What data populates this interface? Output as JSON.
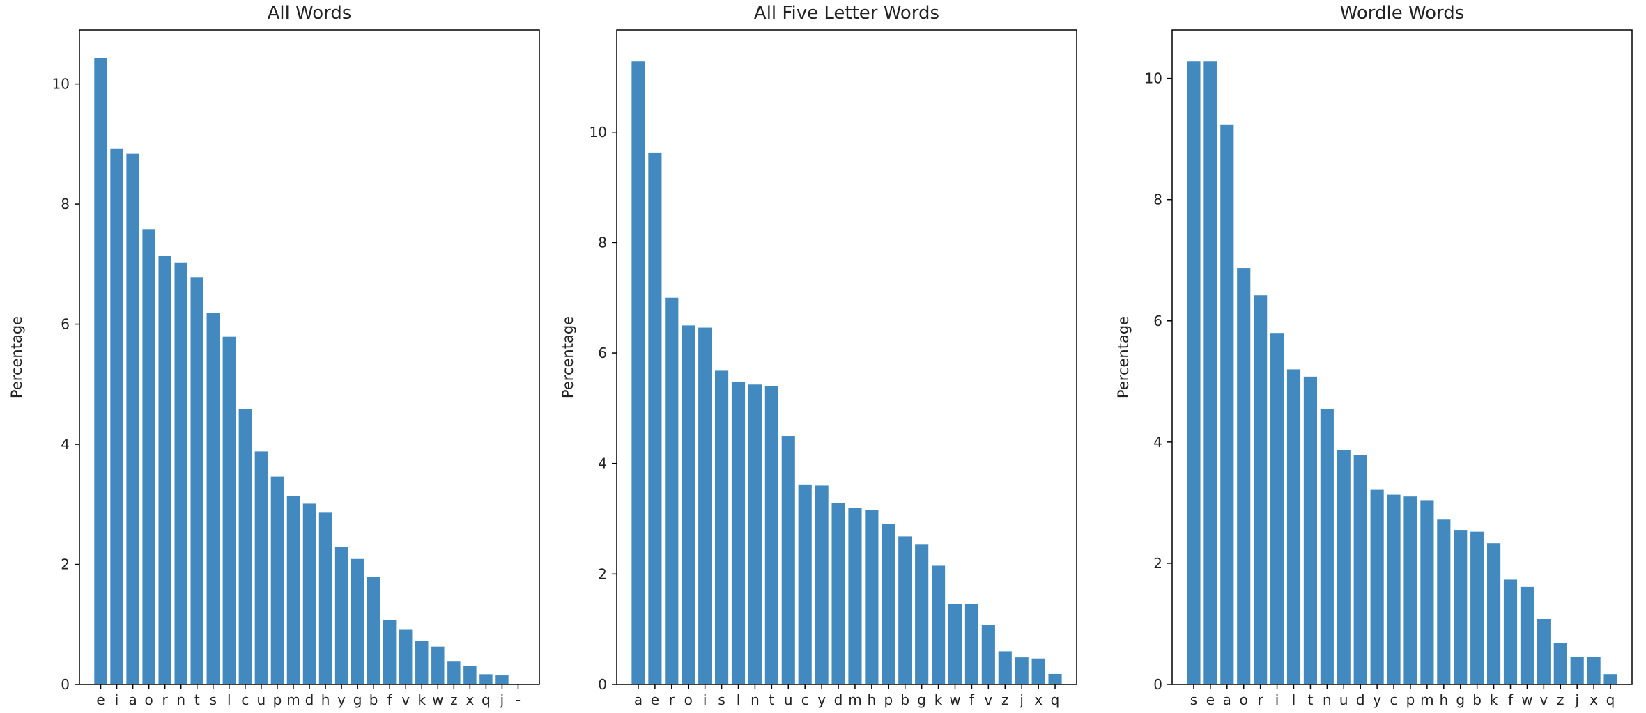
{
  "colors": {
    "bar": "#4189bf",
    "axis": "#000000",
    "text": "#222222",
    "background": "#ffffff"
  },
  "chart_data": [
    {
      "type": "bar",
      "title": "All Words",
      "xlabel": "",
      "ylabel": "Percentage",
      "ylim": [
        0,
        10.9
      ],
      "yticks": [
        0,
        2,
        4,
        6,
        8,
        10
      ],
      "categories": [
        "e",
        "i",
        "a",
        "o",
        "r",
        "n",
        "t",
        "s",
        "l",
        "c",
        "u",
        "p",
        "m",
        "d",
        "h",
        "y",
        "g",
        "b",
        "f",
        "v",
        "k",
        "w",
        "z",
        "x",
        "q",
        "j",
        "-"
      ],
      "values": [
        10.43,
        8.92,
        8.84,
        7.58,
        7.14,
        7.03,
        6.78,
        6.19,
        5.79,
        4.59,
        3.88,
        3.46,
        3.14,
        3.01,
        2.86,
        2.29,
        2.09,
        1.79,
        1.07,
        0.91,
        0.72,
        0.63,
        0.38,
        0.31,
        0.17,
        0.15,
        0.0
      ],
      "grid": false
    },
    {
      "type": "bar",
      "title": "All Five Letter Words",
      "xlabel": "",
      "ylabel": "Percentage",
      "ylim": [
        0,
        11.85
      ],
      "yticks": [
        0,
        2,
        4,
        6,
        8,
        10
      ],
      "categories": [
        "a",
        "e",
        "r",
        "o",
        "i",
        "s",
        "l",
        "n",
        "t",
        "u",
        "c",
        "y",
        "d",
        "m",
        "h",
        "p",
        "b",
        "g",
        "k",
        "w",
        "f",
        "v",
        "z",
        "j",
        "x",
        "q"
      ],
      "values": [
        11.28,
        9.62,
        7.0,
        6.5,
        6.46,
        5.68,
        5.48,
        5.43,
        5.4,
        4.5,
        3.62,
        3.6,
        3.28,
        3.19,
        3.16,
        2.91,
        2.68,
        2.53,
        2.15,
        1.46,
        1.46,
        1.08,
        0.6,
        0.49,
        0.47,
        0.19
      ],
      "grid": false
    },
    {
      "type": "bar",
      "title": "Wordle Words",
      "xlabel": "",
      "ylabel": "Percentage",
      "ylim": [
        0,
        10.8
      ],
      "yticks": [
        0,
        2,
        4,
        6,
        8,
        10
      ],
      "categories": [
        "s",
        "e",
        "a",
        "o",
        "r",
        "i",
        "l",
        "t",
        "n",
        "u",
        "d",
        "y",
        "c",
        "p",
        "m",
        "h",
        "g",
        "b",
        "k",
        "f",
        "w",
        "v",
        "z",
        "j",
        "x",
        "q"
      ],
      "values": [
        10.28,
        10.28,
        9.24,
        6.87,
        6.42,
        5.8,
        5.2,
        5.08,
        4.55,
        3.87,
        3.78,
        3.21,
        3.13,
        3.1,
        3.04,
        2.72,
        2.55,
        2.52,
        2.33,
        1.73,
        1.61,
        1.08,
        0.68,
        0.45,
        0.45,
        0.17
      ],
      "grid": false
    }
  ]
}
